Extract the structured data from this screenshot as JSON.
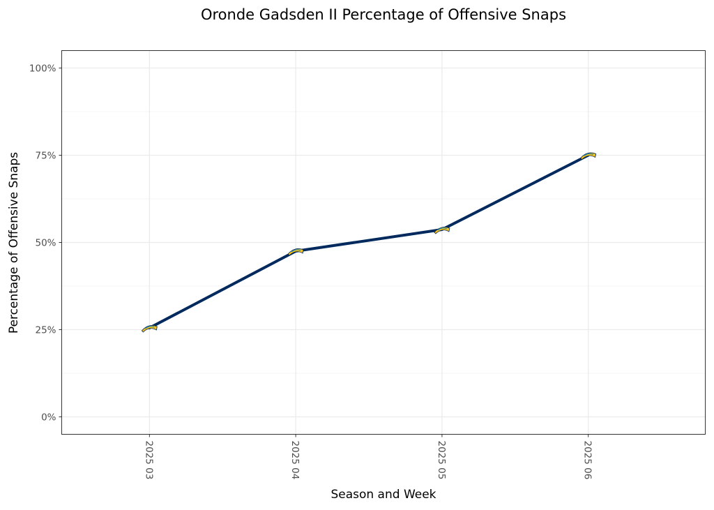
{
  "chart_data": {
    "type": "line",
    "title": "Oronde Gadsden II Percentage of Offensive Snaps",
    "xlabel": "Season and Week",
    "ylabel": "Percentage of Offensive Snaps",
    "categories": [
      "2025 03",
      "2025 04",
      "2025 05",
      "2025 06"
    ],
    "series": [
      {
        "name": "Oronde Gadsden II",
        "values": [
          25.5,
          47.5,
          53.7,
          75.0
        ],
        "marker": "chargers-bolt-icon"
      }
    ],
    "y_ticks": [
      0,
      25,
      50,
      75,
      100
    ],
    "y_tick_labels": [
      "0%",
      "25%",
      "50%",
      "75%",
      "100%"
    ],
    "ylim": [
      -5,
      105
    ],
    "grid": true,
    "legend": "none",
    "colors": {
      "line": "#002a5e",
      "marker_gold": "#ffc20e",
      "marker_blue": "#0080c6",
      "grid_major": "#ebebeb",
      "grid_minor": "#f5f5f5",
      "panel_border": "#333333"
    }
  }
}
